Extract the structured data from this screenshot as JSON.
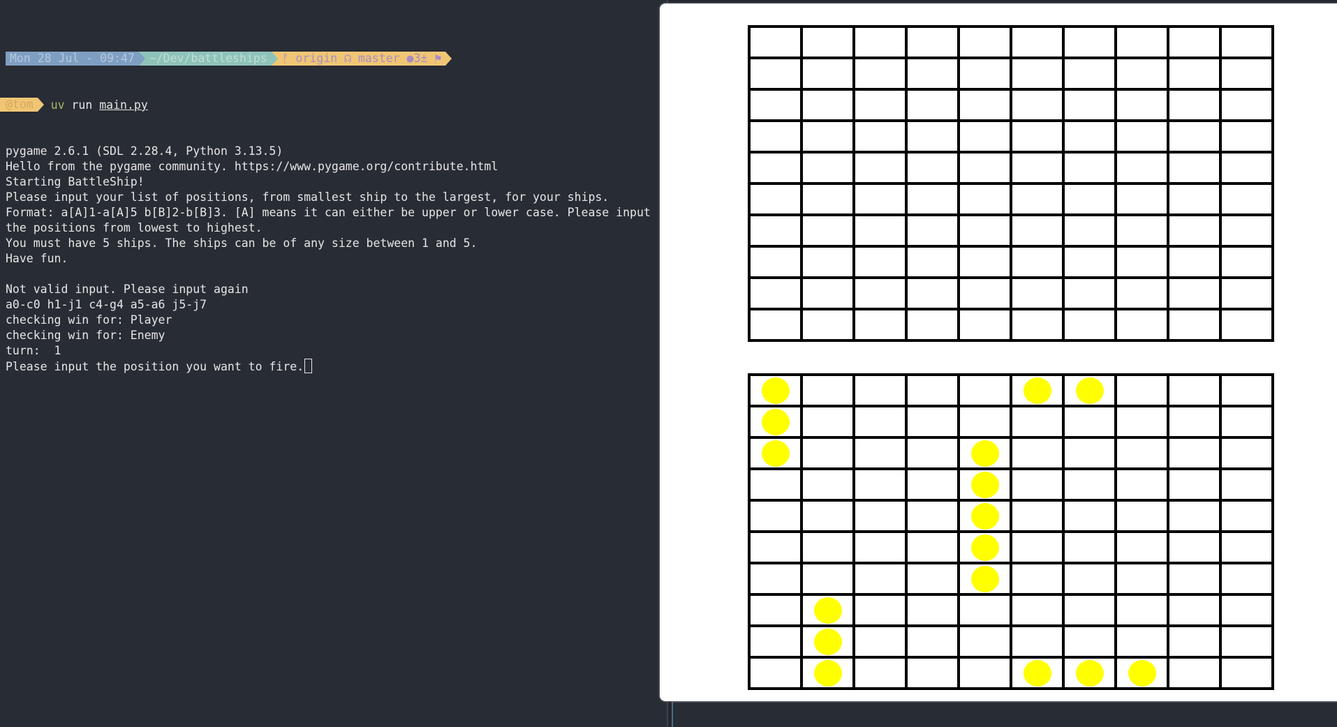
{
  "prompt": {
    "date": "Mon 28 Jul - 09:47",
    "path": "~/Dev/battleships",
    "git_branch_icon": "git-branch-icon",
    "git_remote": "origin",
    "git_branch": "master",
    "git_status": "●3±",
    "git_flag_icon": "flag-icon",
    "user": "@tom",
    "command": "uv",
    "command_arg1": "run",
    "command_arg2": "main.py"
  },
  "output_lines": [
    "pygame 2.6.1 (SDL 2.28.4, Python 3.13.5)",
    "Hello from the pygame community. https://www.pygame.org/contribute.html",
    "Starting BattleShip!",
    "Please input your list of positions, from smallest ship to the largest, for your ships.",
    "Format: a[A]1-a[A]5 b[B]2-b[B]3. [A] means it can either be upper or lower case. Please input",
    "the positions from lowest to highest.",
    "You must have 5 ships. The ships can be of any size between 1 and 5.",
    "Have fun.",
    "",
    "Not valid input. Please input again",
    "a0-c0 h1-j1 c4-g4 a5-a6 j5-j7",
    "checking win for: Player",
    "checking win for: Enemy",
    "turn:  1",
    "Please input the position you want to fire."
  ],
  "colors": {
    "terminal_bg": "#282c34",
    "date_seg": "#7f9fc2",
    "path_seg": "#8ec3b9",
    "git_seg": "#f0c674",
    "ship": "#ffff00"
  },
  "game": {
    "grid_size": 10,
    "enemy_board_ships": [],
    "player_board_ships": [
      [
        0,
        0
      ],
      [
        0,
        5
      ],
      [
        0,
        6
      ],
      [
        1,
        0
      ],
      [
        2,
        0
      ],
      [
        2,
        4
      ],
      [
        3,
        4
      ],
      [
        4,
        4
      ],
      [
        5,
        4
      ],
      [
        6,
        4
      ],
      [
        7,
        1
      ],
      [
        8,
        1
      ],
      [
        9,
        1
      ],
      [
        9,
        5
      ],
      [
        9,
        6
      ],
      [
        9,
        7
      ]
    ]
  }
}
